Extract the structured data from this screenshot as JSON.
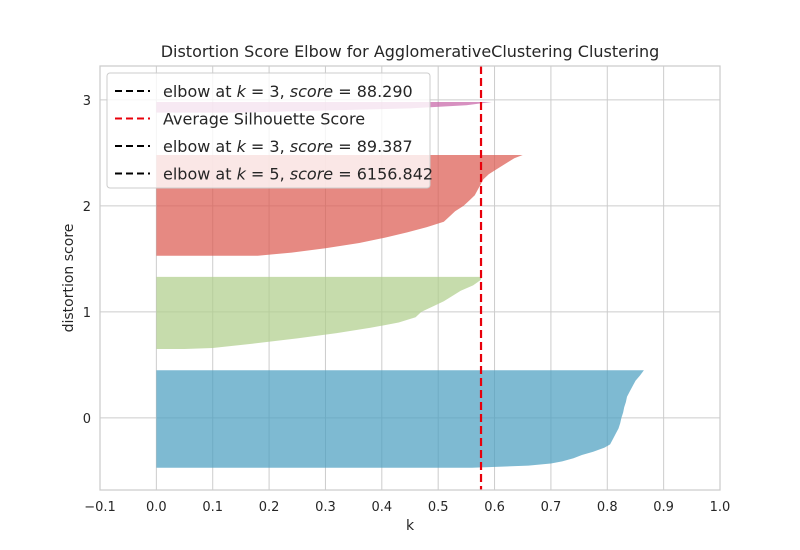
{
  "chart_data": {
    "type": "area",
    "title": "Distortion Score Elbow for AgglomerativeClustering Clustering",
    "xlabel": "k",
    "ylabel": "distortion score",
    "xlim": [
      -0.1,
      1.0
    ],
    "ylim": [
      -0.68,
      3.32
    ],
    "xticks": [
      -0.1,
      0.0,
      0.1,
      0.2,
      0.3,
      0.4,
      0.5,
      0.6,
      0.7,
      0.8,
      0.9,
      1.0
    ],
    "xtick_labels": [
      "−0.1",
      "0.0",
      "0.1",
      "0.2",
      "0.3",
      "0.4",
      "0.5",
      "0.6",
      "0.7",
      "0.8",
      "0.9",
      "1.0"
    ],
    "yticks": [
      0,
      1,
      2,
      3
    ],
    "ytick_labels": [
      "0",
      "1",
      "2",
      "3"
    ],
    "grid": true,
    "legend_position": "top-left",
    "average_line": {
      "x": 0.576,
      "color": "#e8000b",
      "style": "dashed"
    },
    "legend": [
      {
        "label_prefix": "elbow at ",
        "k_label": "k",
        "eq1": " = 3, ",
        "score_label": "score",
        "eq2": " = 88.290",
        "color": "#000000"
      },
      {
        "label": "Average Silhouette Score",
        "color": "#e8000b"
      },
      {
        "label_prefix": "elbow at ",
        "k_label": "k",
        "eq1": " = 3, ",
        "score_label": "score",
        "eq2": " = 89.387",
        "color": "#000000"
      },
      {
        "label_prefix": "elbow at ",
        "k_label": "k",
        "eq1": " = 5, ",
        "score_label": "score",
        "eq2": " = 6156.842",
        "color": "#000000"
      }
    ],
    "series": [
      {
        "cluster": 0,
        "color": "#4c9fc0",
        "y_range": [
          -0.47,
          0.45
        ],
        "profile": [
          [
            0.45,
            0.865
          ],
          [
            0.4,
            0.858
          ],
          [
            0.35,
            0.85
          ],
          [
            0.3,
            0.845
          ],
          [
            0.25,
            0.84
          ],
          [
            0.2,
            0.835
          ],
          [
            0.15,
            0.833
          ],
          [
            0.1,
            0.83
          ],
          [
            0.05,
            0.828
          ],
          [
            0.0,
            0.825
          ],
          [
            -0.05,
            0.823
          ],
          [
            -0.1,
            0.82
          ],
          [
            -0.15,
            0.815
          ],
          [
            -0.2,
            0.81
          ],
          [
            -0.25,
            0.805
          ],
          [
            -0.28,
            0.795
          ],
          [
            -0.32,
            0.775
          ],
          [
            -0.35,
            0.755
          ],
          [
            -0.38,
            0.74
          ],
          [
            -0.41,
            0.72
          ],
          [
            -0.43,
            0.7
          ],
          [
            -0.45,
            0.66
          ],
          [
            -0.47,
            0.56
          ]
        ]
      },
      {
        "cluster": 1,
        "color": "#b0cf8c",
        "y_range": [
          0.65,
          1.33
        ],
        "profile": [
          [
            1.33,
            0.578
          ],
          [
            1.3,
            0.575
          ],
          [
            1.25,
            0.562
          ],
          [
            1.2,
            0.54
          ],
          [
            1.15,
            0.525
          ],
          [
            1.1,
            0.51
          ],
          [
            1.05,
            0.49
          ],
          [
            1.0,
            0.47
          ],
          [
            0.95,
            0.46
          ],
          [
            0.9,
            0.43
          ],
          [
            0.85,
            0.38
          ],
          [
            0.8,
            0.32
          ],
          [
            0.75,
            0.25
          ],
          [
            0.7,
            0.17
          ],
          [
            0.66,
            0.1
          ],
          [
            0.65,
            0.05
          ]
        ]
      },
      {
        "cluster": 2,
        "color": "#dc5b52",
        "y_range": [
          1.53,
          2.48
        ],
        "profile": [
          [
            2.48,
            0.65
          ],
          [
            2.45,
            0.635
          ],
          [
            2.4,
            0.62
          ],
          [
            2.35,
            0.605
          ],
          [
            2.3,
            0.59
          ],
          [
            2.25,
            0.58
          ],
          [
            2.2,
            0.575
          ],
          [
            2.15,
            0.57
          ],
          [
            2.1,
            0.565
          ],
          [
            2.05,
            0.555
          ],
          [
            2.0,
            0.545
          ],
          [
            1.95,
            0.53
          ],
          [
            1.9,
            0.52
          ],
          [
            1.85,
            0.51
          ],
          [
            1.8,
            0.48
          ],
          [
            1.75,
            0.445
          ],
          [
            1.7,
            0.405
          ],
          [
            1.65,
            0.36
          ],
          [
            1.6,
            0.3
          ],
          [
            1.56,
            0.24
          ],
          [
            1.53,
            0.18
          ]
        ]
      },
      {
        "cluster": 3,
        "color": "#c765a8",
        "y_range": [
          2.88,
          2.98
        ],
        "profile": [
          [
            2.98,
            0.595
          ],
          [
            2.95,
            0.55
          ],
          [
            2.92,
            0.45
          ],
          [
            2.9,
            0.3
          ],
          [
            2.88,
            0.15
          ]
        ]
      }
    ]
  }
}
